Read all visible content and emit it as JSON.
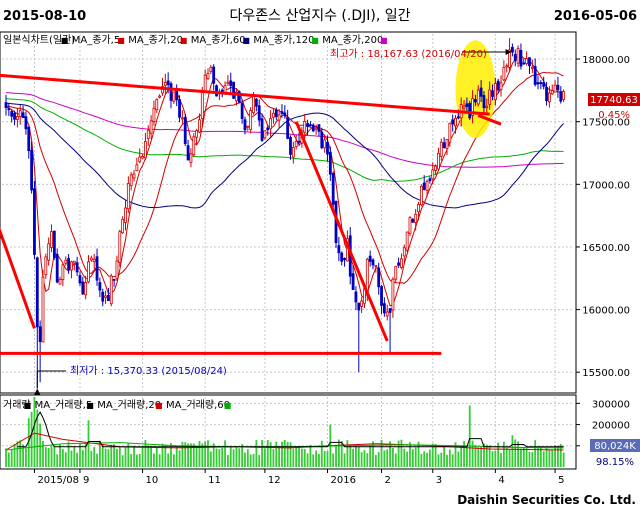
{
  "header": {
    "start_date": "2015-08-10",
    "end_date": "2016-05-06",
    "title": "다우존스 산업지수 (.DJI), 일간"
  },
  "price_legend": [
    {
      "label": "일본식차트(일간)",
      "color": "#000000",
      "dash": "",
      "marker": "■"
    },
    {
      "label": "MA_종가,5",
      "color": "#d00000",
      "dash": "",
      "marker": "■"
    },
    {
      "label": "MA_종가,20",
      "color": "#d00000",
      "dash": "",
      "marker": "■"
    },
    {
      "label": "MA_종가,60",
      "color": "#000080",
      "dash": "",
      "marker": "■"
    },
    {
      "label": "MA_종가,120",
      "color": "#00b000",
      "dash": "",
      "marker": "■"
    },
    {
      "label": "MA_종가,200",
      "color": "#cc00cc",
      "dash": "",
      "marker": "■"
    }
  ],
  "volume_legend": [
    {
      "label": "거래량",
      "color": "#000000",
      "dash": "",
      "marker": "■"
    },
    {
      "label": "MA_거래량,5",
      "color": "#000000",
      "dash": "",
      "marker": "■"
    },
    {
      "label": "MA_거래량,20",
      "color": "#d00000",
      "dash": "",
      "marker": "■"
    },
    {
      "label": "MA_거래량,60",
      "color": "#00b000",
      "dash": "",
      "marker": "■"
    }
  ],
  "annotations": {
    "high_label": "최고가 : 18,167.63 (2016/04/20)",
    "low_label": "최저가 : 15,370.33 (2015/08/24)"
  },
  "last_price": {
    "value": "17740.63",
    "change": "0.45%"
  },
  "last_volume": {
    "value": "80,024K",
    "ratio": "98.15%"
  },
  "footer": {
    "company": "Daishin Securities Co. Ltd."
  },
  "colors": {
    "up": "#d00000",
    "down": "#0000c0",
    "trendline": "#ff0000",
    "highlight": "#ffee00",
    "grid": "#c8c8c8"
  },
  "chart_data": {
    "type": "candlestick",
    "title": "다우존스 산업지수 (.DJI), 일간",
    "price_axis": {
      "range": [
        15350,
        18200
      ],
      "ticks": [
        15500,
        16000,
        16500,
        17000,
        17500,
        18000
      ],
      "tick_labels": [
        "15500.00",
        "16000.00",
        "16500.00",
        "17000.00",
        "17500.00",
        "18000.00"
      ]
    },
    "volume_axis": {
      "range": [
        0,
        330000
      ],
      "ticks": [
        100000,
        200000,
        300000
      ],
      "tick_labels": [
        "100000",
        "200000",
        "300000"
      ]
    },
    "x_axis": {
      "labels": [
        {
          "label": "2015/08",
          "day": 10
        },
        {
          "label": "9",
          "day": 26
        },
        {
          "label": "10",
          "day": 48
        },
        {
          "label": "11",
          "day": 70
        },
        {
          "label": "12",
          "day": 91
        },
        {
          "label": "2016",
          "day": 113
        },
        {
          "label": "2",
          "day": 132
        },
        {
          "label": "3",
          "day": 150
        },
        {
          "label": "4",
          "day": 172
        },
        {
          "label": "5",
          "day": 193
        }
      ]
    },
    "close_anchors": [
      [
        0,
        17580
      ],
      [
        3,
        17500
      ],
      [
        5,
        17530
      ],
      [
        7,
        17450
      ],
      [
        9,
        17000
      ],
      [
        10,
        16460
      ],
      [
        11,
        15840
      ],
      [
        12,
        15780
      ],
      [
        13,
        16290
      ],
      [
        16,
        16640
      ],
      [
        18,
        16290
      ],
      [
        22,
        16370
      ],
      [
        24,
        16440
      ],
      [
        27,
        16100
      ],
      [
        30,
        16480
      ],
      [
        32,
        16200
      ],
      [
        35,
        16060
      ],
      [
        38,
        16300
      ],
      [
        43,
        16950
      ],
      [
        48,
        17280
      ],
      [
        51,
        17480
      ],
      [
        55,
        17780
      ],
      [
        57,
        17750
      ],
      [
        60,
        17710
      ],
      [
        64,
        17260
      ],
      [
        67,
        17400
      ],
      [
        70,
        17890
      ],
      [
        72,
        17870
      ],
      [
        75,
        17700
      ],
      [
        78,
        17800
      ],
      [
        81,
        17720
      ],
      [
        84,
        17400
      ],
      [
        87,
        17770
      ],
      [
        90,
        17300
      ],
      [
        92,
        17420
      ],
      [
        95,
        17600
      ],
      [
        98,
        17580
      ],
      [
        100,
        17250
      ],
      [
        103,
        17400
      ],
      [
        105,
        17550
      ],
      [
        107,
        17450
      ],
      [
        110,
        17370
      ],
      [
        113,
        17250
      ],
      [
        115,
        16800
      ],
      [
        117,
        16400
      ],
      [
        120,
        16500
      ],
      [
        122,
        16150
      ],
      [
        124,
        16000
      ],
      [
        127,
        16350
      ],
      [
        129,
        16400
      ],
      [
        131,
        16200
      ],
      [
        133,
        16000
      ],
      [
        135,
        15980
      ],
      [
        136,
        16280
      ],
      [
        139,
        16450
      ],
      [
        141,
        16640
      ],
      [
        143,
        16700
      ],
      [
        145,
        16900
      ],
      [
        148,
        17000
      ],
      [
        150,
        17100
      ],
      [
        152,
        17200
      ],
      [
        155,
        17400
      ],
      [
        158,
        17550
      ],
      [
        160,
        17580
      ],
      [
        163,
        17600
      ],
      [
        166,
        17700
      ],
      [
        169,
        17650
      ],
      [
        171,
        17750
      ],
      [
        174,
        17850
      ],
      [
        176,
        18000
      ],
      [
        177,
        18100
      ],
      [
        179,
        18050
      ],
      [
        182,
        17980
      ],
      [
        184,
        17900
      ],
      [
        186,
        17850
      ],
      [
        188,
        17800
      ],
      [
        190,
        17720
      ],
      [
        192,
        17780
      ],
      [
        194,
        17700
      ],
      [
        196,
        17740
      ]
    ],
    "special_bars": [
      {
        "day": 11,
        "low": 15370.33
      },
      {
        "day": 12,
        "low": 15420
      },
      {
        "day": 110,
        "high": 17450
      },
      {
        "day": 124,
        "low": 15500
      },
      {
        "day": 135,
        "low": 15660
      },
      {
        "day": 177,
        "high": 18167.63
      }
    ],
    "volume_peaks": [
      {
        "day": 8,
        "value": 230000
      },
      {
        "day": 9,
        "value": 260000
      },
      {
        "day": 10,
        "value": 330000
      },
      {
        "day": 11,
        "value": 270000
      },
      {
        "day": 12,
        "value": 205000
      },
      {
        "day": 29,
        "value": 220000
      },
      {
        "day": 114,
        "value": 200000
      },
      {
        "day": 163,
        "value": 290000
      },
      {
        "day": 178,
        "value": 150000
      }
    ],
    "volume_ma": [
      {
        "name": "MA_거래량,20",
        "color": "#d00000",
        "points": [
          [
            0,
            80000
          ],
          [
            10,
            160000
          ],
          [
            20,
            130000
          ],
          [
            40,
            95000
          ],
          [
            60,
            90000
          ],
          [
            80,
            95000
          ],
          [
            100,
            90000
          ],
          [
            113,
            100000
          ],
          [
            130,
            110000
          ],
          [
            150,
            100000
          ],
          [
            170,
            85000
          ],
          [
            196,
            80000
          ]
        ]
      },
      {
        "name": "MA_거래량,60",
        "color": "#00b000",
        "points": [
          [
            0,
            80000
          ],
          [
            20,
            110000
          ],
          [
            40,
            115000
          ],
          [
            60,
            100000
          ],
          [
            80,
            95000
          ],
          [
            100,
            95000
          ],
          [
            120,
            100000
          ],
          [
            140,
            105000
          ],
          [
            160,
            100000
          ],
          [
            180,
            92000
          ],
          [
            196,
            90000
          ]
        ]
      }
    ],
    "trendlines": [
      {
        "name": "downtrend-resistance",
        "points": [
          [
            -8,
            17880
          ],
          [
            170,
            17560
          ]
        ]
      },
      {
        "name": "decline-left",
        "points": [
          [
            -8,
            17000
          ],
          [
            10,
            15850
          ]
        ]
      },
      {
        "name": "decline-mid",
        "points": [
          [
            102,
            17500
          ],
          [
            134,
            15750
          ]
        ]
      },
      {
        "name": "support",
        "points": [
          [
            -8,
            15650
          ],
          [
            153,
            15650
          ]
        ]
      },
      {
        "name": "rebound",
        "points": [
          [
            166,
            17550
          ],
          [
            174,
            17480
          ]
        ]
      }
    ],
    "highlight_ellipse": {
      "center_day": 165,
      "center_price": 17760,
      "radius_days": 7,
      "radius_price": 390
    },
    "high": {
      "day": 177,
      "value": 18167.63,
      "date": "2016/04/20"
    },
    "low": {
      "day": 11,
      "value": 15370.33,
      "date": "2015/08/24"
    },
    "last": {
      "day": 196,
      "close": 17740.63
    }
  }
}
